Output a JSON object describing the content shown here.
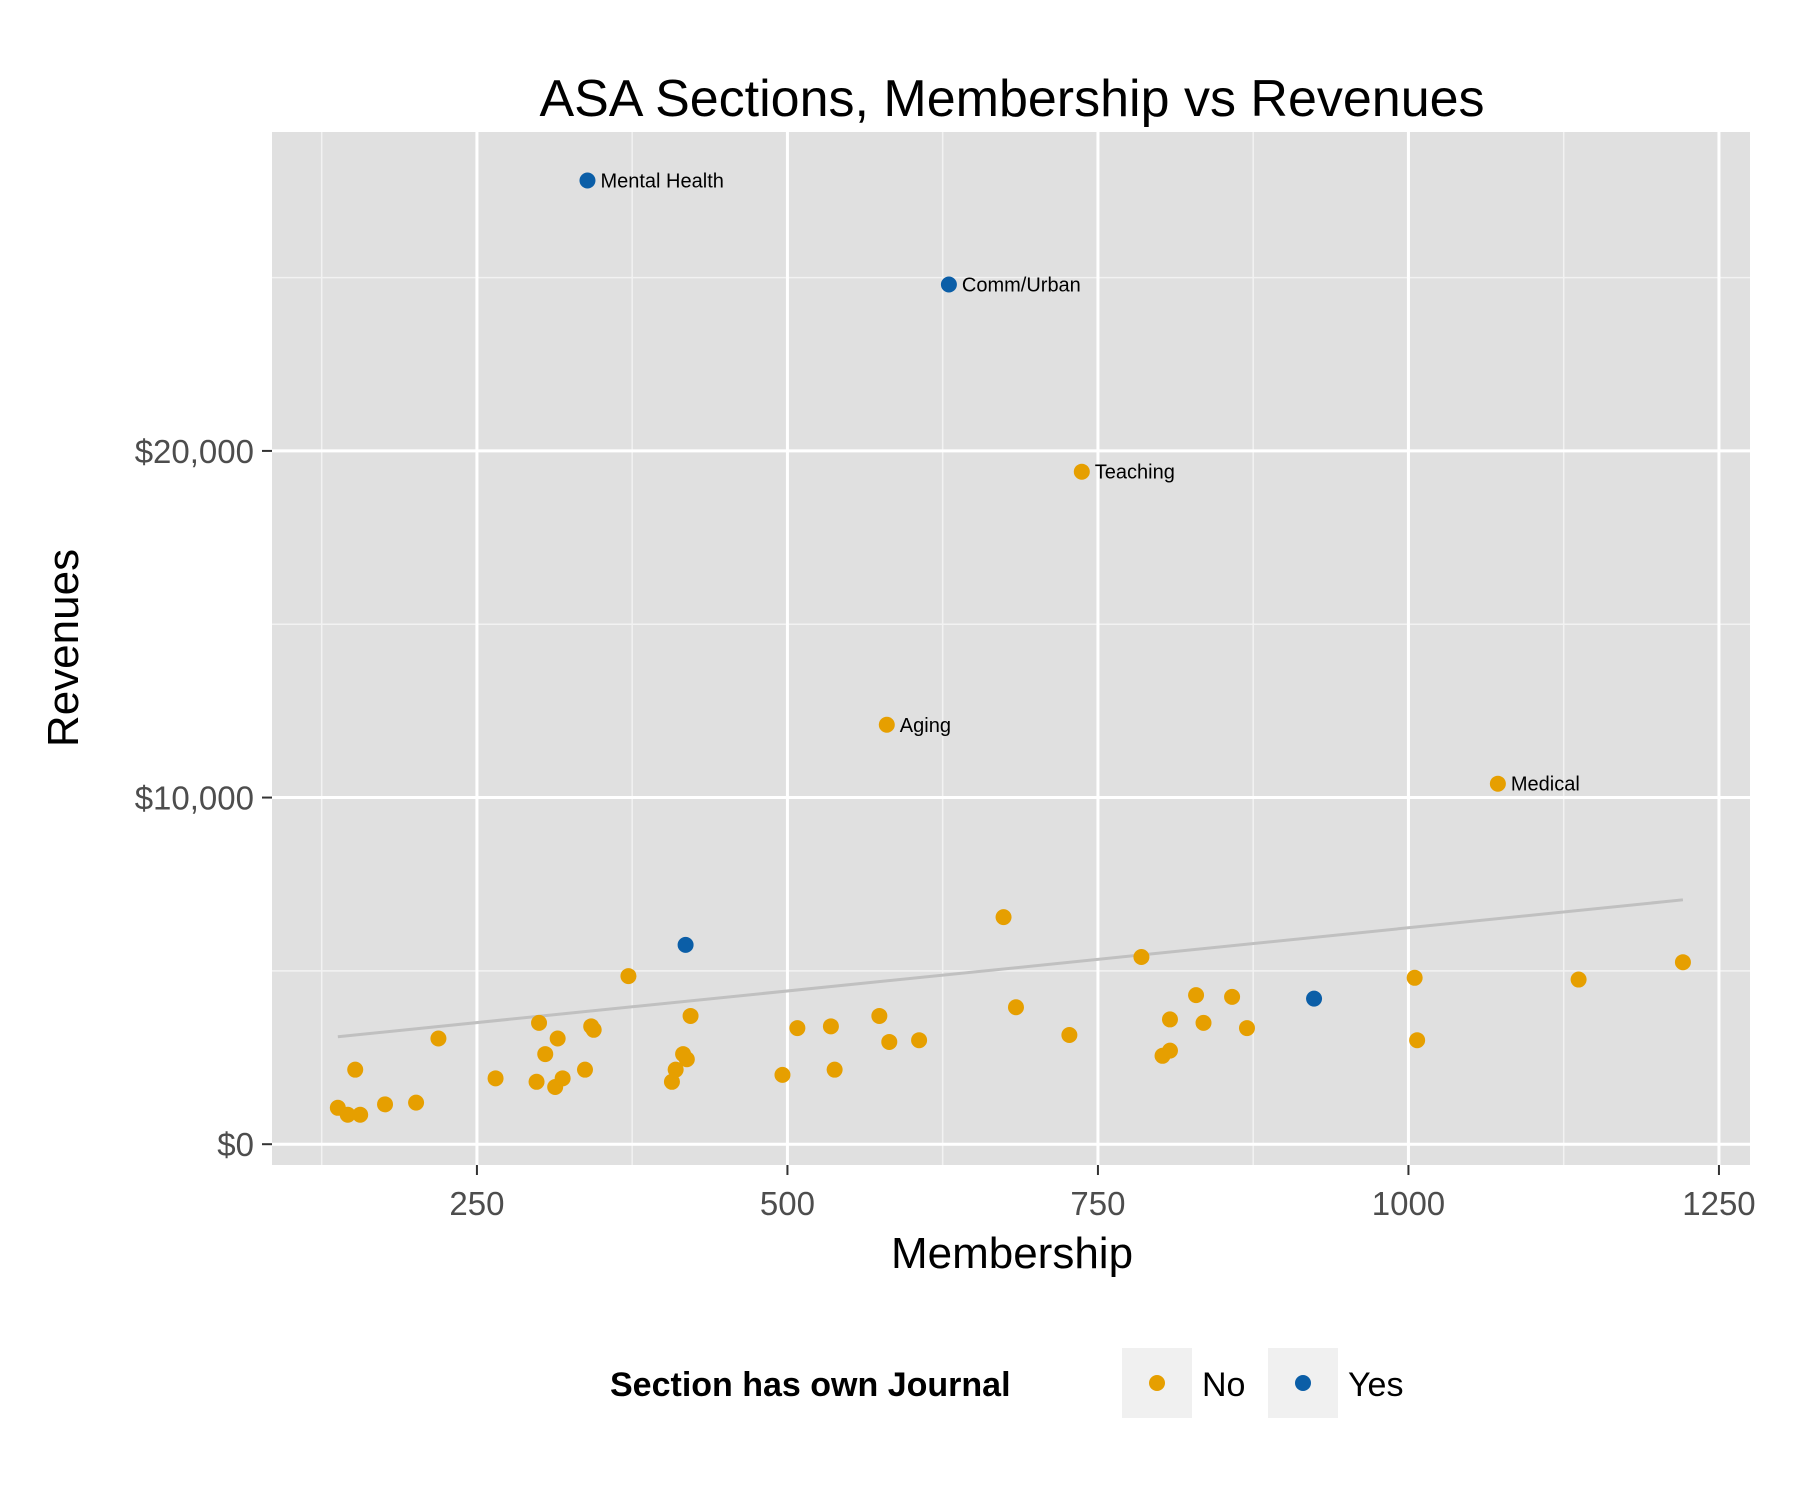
{
  "chart_data": {
    "type": "scatter",
    "title": "ASA Sections, Membership vs Revenues",
    "xlabel": "Membership",
    "ylabel": "Revenues",
    "xlim": [
      85,
      1275
    ],
    "ylim": [
      -600,
      29200
    ],
    "x_ticks": [
      250,
      500,
      750,
      1000,
      1250
    ],
    "x_tick_labels": [
      "250",
      "500",
      "750",
      "1000",
      "1250"
    ],
    "y_ticks": [
      0,
      10000,
      20000
    ],
    "y_tick_labels": [
      "$0",
      "$10,000",
      "$20,000"
    ],
    "grid": true,
    "legend": {
      "title": "Section has own Journal",
      "position": "bottom",
      "entries": [
        {
          "label": "No",
          "color": "#E69F00"
        },
        {
          "label": "Yes",
          "color": "#0B5EA7"
        }
      ]
    },
    "trend_line": {
      "x": [
        138,
        1221
      ],
      "y": [
        3100,
        7050
      ],
      "color": "#c0c0c0"
    },
    "series": [
      {
        "name": "No",
        "color": "#E69F00",
        "points": [
          {
            "x": 737,
            "y": 19400,
            "label": "Teaching"
          },
          {
            "x": 580,
            "y": 12100,
            "label": "Aging"
          },
          {
            "x": 1072,
            "y": 10400,
            "label": "Medical"
          },
          {
            "x": 138,
            "y": 1050
          },
          {
            "x": 146,
            "y": 850
          },
          {
            "x": 156,
            "y": 850
          },
          {
            "x": 152,
            "y": 2150
          },
          {
            "x": 176,
            "y": 1150
          },
          {
            "x": 201,
            "y": 1200
          },
          {
            "x": 219,
            "y": 3050
          },
          {
            "x": 265,
            "y": 1900
          },
          {
            "x": 298,
            "y": 1800
          },
          {
            "x": 300,
            "y": 3500
          },
          {
            "x": 305,
            "y": 2600
          },
          {
            "x": 313,
            "y": 1650
          },
          {
            "x": 315,
            "y": 3050
          },
          {
            "x": 319,
            "y": 1900
          },
          {
            "x": 337,
            "y": 2150
          },
          {
            "x": 342,
            "y": 3400
          },
          {
            "x": 344,
            "y": 3300
          },
          {
            "x": 372,
            "y": 4850
          },
          {
            "x": 407,
            "y": 1800
          },
          {
            "x": 410,
            "y": 2150
          },
          {
            "x": 416,
            "y": 2600
          },
          {
            "x": 419,
            "y": 2450
          },
          {
            "x": 422,
            "y": 3700
          },
          {
            "x": 496,
            "y": 2000
          },
          {
            "x": 508,
            "y": 3350
          },
          {
            "x": 535,
            "y": 3400
          },
          {
            "x": 538,
            "y": 2150
          },
          {
            "x": 574,
            "y": 3700
          },
          {
            "x": 582,
            "y": 2950
          },
          {
            "x": 606,
            "y": 3000
          },
          {
            "x": 674,
            "y": 6550
          },
          {
            "x": 684,
            "y": 3950
          },
          {
            "x": 727,
            "y": 3150
          },
          {
            "x": 785,
            "y": 5400
          },
          {
            "x": 802,
            "y": 2550
          },
          {
            "x": 808,
            "y": 2700
          },
          {
            "x": 808,
            "y": 3600
          },
          {
            "x": 829,
            "y": 4300
          },
          {
            "x": 835,
            "y": 3500
          },
          {
            "x": 858,
            "y": 4250
          },
          {
            "x": 870,
            "y": 3350
          },
          {
            "x": 1005,
            "y": 4800
          },
          {
            "x": 1007,
            "y": 3000
          },
          {
            "x": 1137,
            "y": 4750
          },
          {
            "x": 1221,
            "y": 5250
          }
        ]
      },
      {
        "name": "Yes",
        "color": "#0B5EA7",
        "points": [
          {
            "x": 339,
            "y": 27800,
            "label": "Mental Health"
          },
          {
            "x": 630,
            "y": 24800,
            "label": "Comm/Urban"
          },
          {
            "x": 418,
            "y": 5750
          },
          {
            "x": 924,
            "y": 4200
          }
        ]
      }
    ]
  }
}
